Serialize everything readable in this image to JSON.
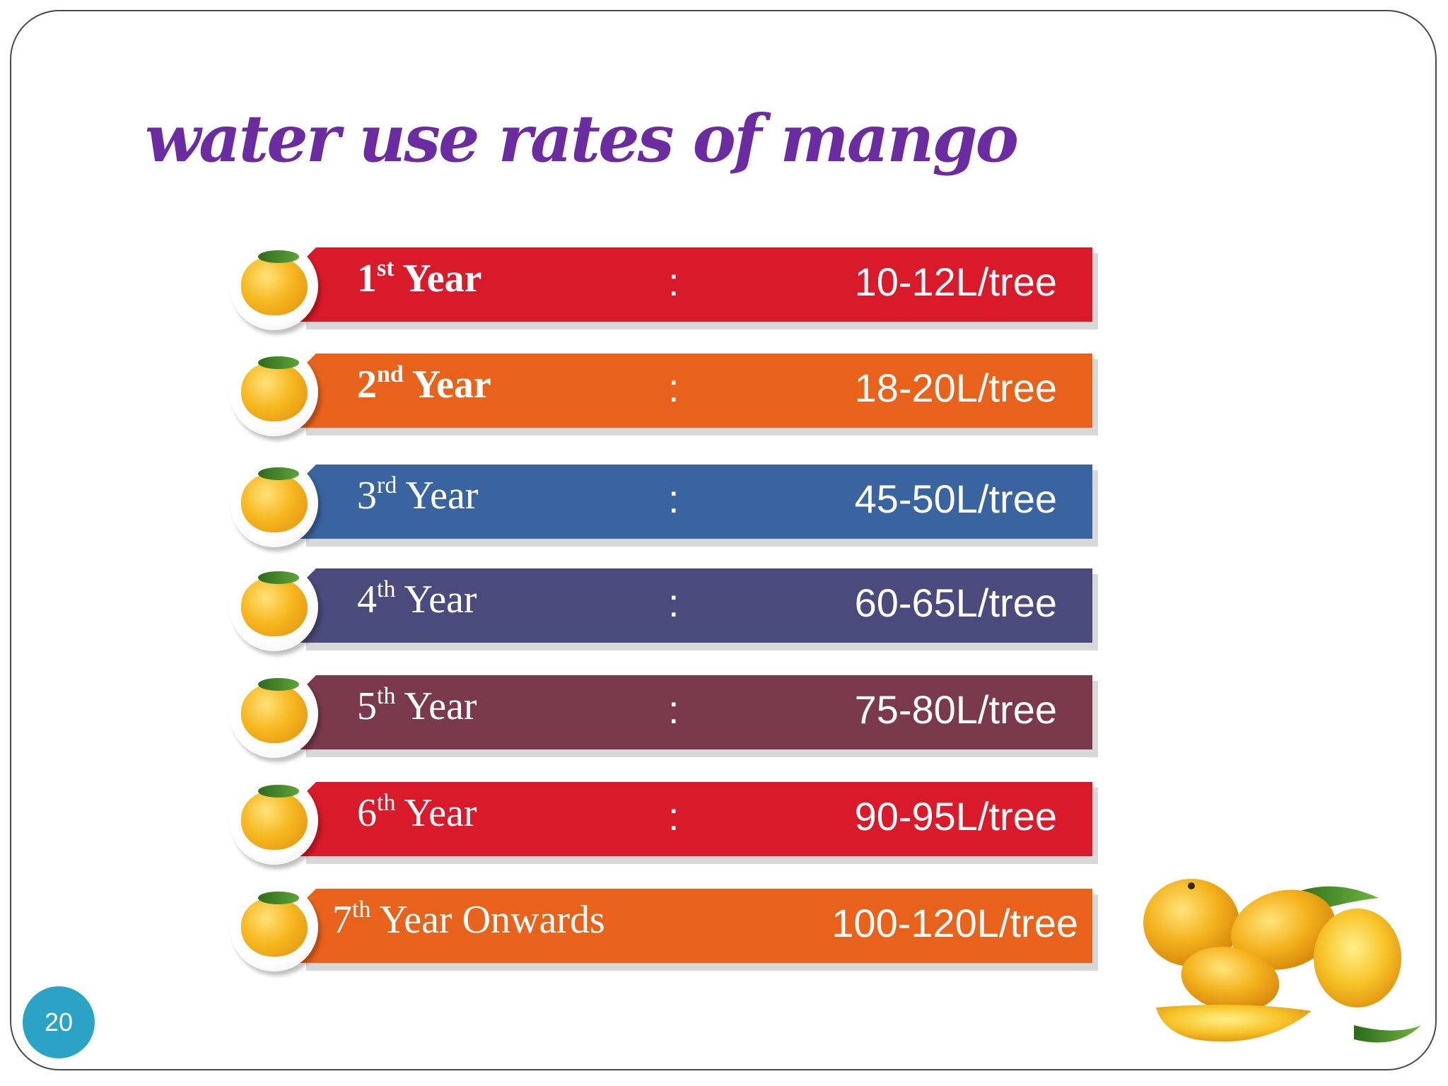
{
  "slide": {
    "title": "water use rates of mango",
    "page_number": "20"
  },
  "rows": [
    {
      "ordinal": "1",
      "suffix": "st",
      "label_rest": " Year",
      "colon": ":",
      "value": "10-12L/tree",
      "color": "#d91a2a",
      "bold": true
    },
    {
      "ordinal": "2",
      "suffix": "nd",
      "label_rest": " Year",
      "colon": ":",
      "value": "18-20L/tree",
      "color": "#e8621c",
      "bold": true
    },
    {
      "ordinal": "3",
      "suffix": "rd",
      "label_rest": " Year",
      "colon": ":",
      "value": "45-50L/tree",
      "color": "#3a64a0",
      "bold": false
    },
    {
      "ordinal": "4",
      "suffix": "th",
      "label_rest": " Year",
      "colon": ":",
      "value": "60-65L/tree",
      "color": "#4a4a7c",
      "bold": false
    },
    {
      "ordinal": "5",
      "suffix": "th",
      "label_rest": " Year",
      "colon": ":",
      "value": "75-80L/tree",
      "color": "#7a3a4c",
      "bold": false
    },
    {
      "ordinal": "6",
      "suffix": "th",
      "label_rest": " Year",
      "colon": ":",
      "value": "90-95L/tree",
      "color": "#d91a2a",
      "bold": false
    },
    {
      "ordinal": "7",
      "suffix": "th",
      "label_rest": " Year Onwards",
      "colon": "",
      "value": "100-120L/tree",
      "color": "#e8621c",
      "bold": false
    }
  ],
  "icons": {
    "row_badge": "mango-icon",
    "decoration": "mango-pile-image"
  }
}
